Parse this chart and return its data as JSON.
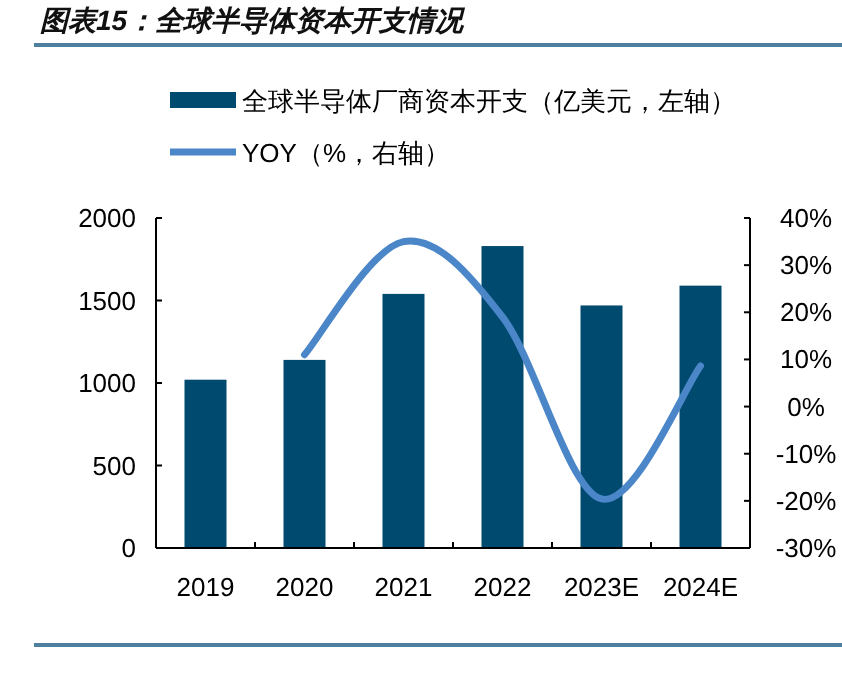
{
  "chart_data": {
    "type": "bar",
    "title": "图表15：全球半导体资本开支情况",
    "categories": [
      "2019",
      "2020",
      "2021",
      "2022",
      "2023E",
      "2024E"
    ],
    "series": [
      {
        "name": "全球半导体厂商资本开支（亿美元，左轴）",
        "color": "#004a70",
        "values": [
          1020,
          1140,
          1540,
          1830,
          1470,
          1590
        ]
      },
      {
        "name": "YOY（%，右轴）",
        "type": "line",
        "axis": "y2",
        "color": "#4a86c8",
        "values": [
          null,
          11,
          35,
          19,
          -19.6,
          8.6
        ]
      }
    ],
    "ylim": [
      0,
      2000
    ],
    "yticks": [
      0,
      500,
      1000,
      1500,
      2000
    ],
    "y2lim": [
      -30,
      40
    ],
    "y2ticks": [
      {
        "value": -30,
        "label": "-30%"
      },
      {
        "value": -20,
        "label": "-20%"
      },
      {
        "value": -10,
        "label": "-10%"
      },
      {
        "value": 0,
        "label": "0%"
      },
      {
        "value": 10,
        "label": "10%"
      },
      {
        "value": 20,
        "label": "20%"
      },
      {
        "value": 30,
        "label": "30%"
      },
      {
        "value": 40,
        "label": "40%"
      }
    ],
    "legend": "top",
    "grid": false
  }
}
